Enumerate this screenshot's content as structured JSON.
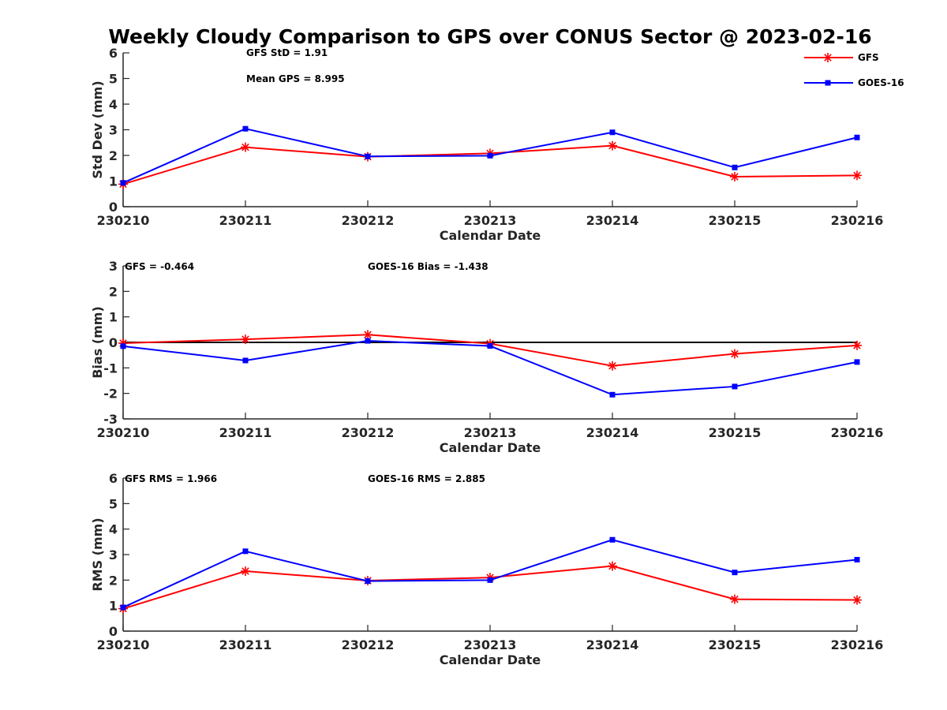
{
  "title": "Weekly Cloudy Comparison to GPS over CONUS Sector @ 2023-02-16",
  "legend": {
    "placement": "top-right",
    "entries": [
      {
        "name": "GFS",
        "color": "#ff0000",
        "marker": "asterisk"
      },
      {
        "name": "GOES-16",
        "color": "#0000ff",
        "marker": "square"
      }
    ]
  },
  "chart_data": [
    {
      "type": "line",
      "xlabel": "Calendar Date",
      "ylabel": "Std Dev (mm)",
      "categories": [
        "230210",
        "230211",
        "230212",
        "230213",
        "230214",
        "230215",
        "230216"
      ],
      "ylim": [
        0,
        6
      ],
      "yticks": [
        "0",
        "1",
        "2",
        "3",
        "4",
        "5",
        "6"
      ],
      "zero_line": false,
      "annotations": [
        "GFS StD = 1.91",
        "Mean GPS = 8.995"
      ],
      "series": [
        {
          "name": "GFS",
          "color": "#ff0000",
          "marker": "asterisk",
          "values": [
            0.88,
            2.32,
            1.95,
            2.08,
            2.38,
            1.17,
            1.22
          ]
        },
        {
          "name": "GOES-16",
          "color": "#0000ff",
          "marker": "square",
          "values": [
            0.93,
            3.04,
            1.96,
            1.99,
            2.9,
            1.53,
            2.7
          ]
        }
      ]
    },
    {
      "type": "line",
      "xlabel": "Calendar Date",
      "ylabel": "Bias (mm)",
      "categories": [
        "230210",
        "230211",
        "230212",
        "230213",
        "230214",
        "230215",
        "230216"
      ],
      "ylim": [
        -3,
        3
      ],
      "yticks": [
        "-3",
        "-2",
        "-1",
        "0",
        "1",
        "2",
        "3"
      ],
      "zero_line": true,
      "annotations": [
        "GFS = -0.464",
        "GOES-16 Bias  = -1.438"
      ],
      "series": [
        {
          "name": "GFS",
          "color": "#ff0000",
          "marker": "asterisk",
          "values": [
            -0.03,
            0.12,
            0.3,
            -0.05,
            -0.92,
            -0.45,
            -0.12
          ]
        },
        {
          "name": "GOES-16",
          "color": "#0000ff",
          "marker": "square",
          "values": [
            -0.15,
            -0.71,
            0.06,
            -0.14,
            -2.05,
            -1.73,
            -0.77
          ]
        }
      ]
    },
    {
      "type": "line",
      "xlabel": "Calendar Date",
      "ylabel": "RMS (mm)",
      "categories": [
        "230210",
        "230211",
        "230212",
        "230213",
        "230214",
        "230215",
        "230216"
      ],
      "ylim": [
        0,
        6
      ],
      "yticks": [
        "0",
        "1",
        "2",
        "3",
        "4",
        "5",
        "6"
      ],
      "zero_line": false,
      "annotations": [
        "GFS RMS = 1.966",
        "GOES-16 RMS = 2.885"
      ],
      "series": [
        {
          "name": "GFS",
          "color": "#ff0000",
          "marker": "asterisk",
          "values": [
            0.88,
            2.35,
            1.98,
            2.1,
            2.55,
            1.25,
            1.22
          ]
        },
        {
          "name": "GOES-16",
          "color": "#0000ff",
          "marker": "square",
          "values": [
            0.93,
            3.13,
            1.96,
            2.0,
            3.58,
            2.3,
            2.8
          ]
        }
      ]
    }
  ]
}
